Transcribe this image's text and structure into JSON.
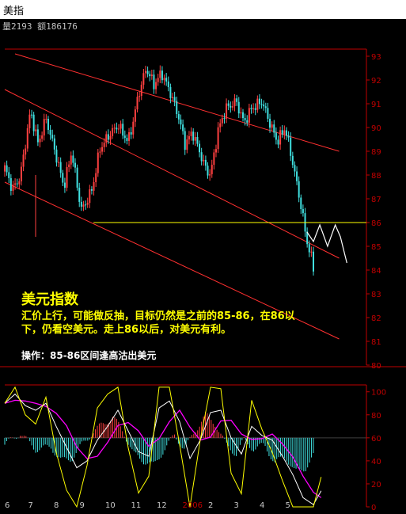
{
  "window": {
    "title": "美指"
  },
  "info_bar": {
    "text": "量2193 额186176"
  },
  "annotation": {
    "heading": "美元指数",
    "line1": "汇价上行，可能做反抽，目标仍然是之前的85-86，在86以",
    "line2": "下，仍看空美元。走上86以后，对美元有利。",
    "operation": "操作：85-86区间逢高沽出美元"
  },
  "colors": {
    "up": "#ff4040",
    "down": "#40e0e0",
    "axis": "#c00000",
    "channel": "#ff3030",
    "support": "#ffff00",
    "projection": "#ffffff",
    "heading": "#ffff00",
    "comment": "#ffff00",
    "operation": "#ffffff",
    "osc_k": "#ffffff",
    "osc_d": "#ff00ff",
    "osc_j": "#ffff00"
  },
  "chart_data": [
    {
      "type": "candlestick",
      "ylim": [
        80,
        93.3
      ],
      "yticks": [
        "93",
        "92",
        "91",
        "90",
        "89",
        "88",
        "87",
        "86",
        "85",
        "84",
        "83",
        "82",
        "81",
        "80"
      ],
      "grid": false,
      "key_level": 86,
      "channel_lines": [
        {
          "name": "upper",
          "start": [
            0.4,
            93.1
          ],
          "end": [
            13.0,
            89.0
          ]
        },
        {
          "name": "middle",
          "start": [
            0.0,
            91.6
          ],
          "end": [
            13.0,
            84.5
          ]
        },
        {
          "name": "lower",
          "start": [
            0.0,
            87.7
          ],
          "end": [
            13.0,
            81.1
          ]
        }
      ],
      "projection": [
        [
          11.75,
          85.6
        ],
        [
          12.0,
          85.2
        ],
        [
          12.25,
          85.9
        ],
        [
          12.55,
          85.0
        ],
        [
          12.85,
          85.9
        ],
        [
          13.05,
          85.4
        ],
        [
          13.3,
          84.3
        ]
      ],
      "months": [
        "6",
        "7",
        "8",
        "9",
        "10",
        "11",
        "12",
        "2006",
        "2",
        "3",
        "4",
        "5"
      ],
      "month_positions": [
        0.0,
        1.0,
        2.0,
        3.0,
        4.0,
        5.0,
        6.0,
        7.0,
        8.0,
        9.0,
        10.0,
        11.0
      ]
    },
    {
      "type": "line",
      "name": "oscillator",
      "ylim": [
        0,
        106
      ],
      "yticks": [
        "100",
        "80",
        "60",
        "40",
        "20",
        "0"
      ],
      "midline": 60
    }
  ]
}
